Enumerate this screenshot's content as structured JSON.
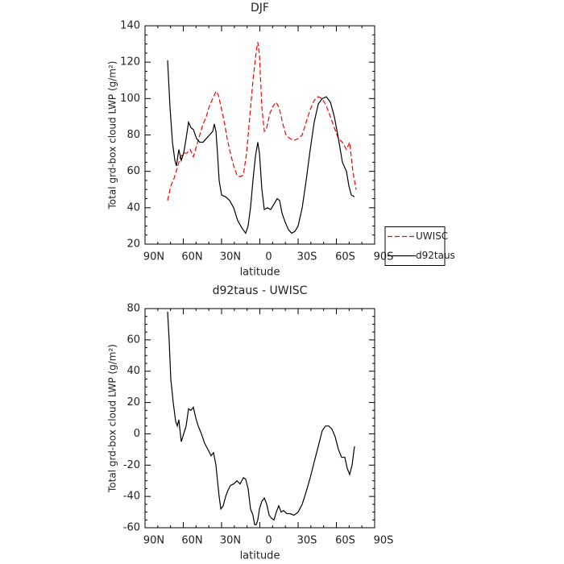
{
  "chart_data": [
    {
      "type": "line",
      "title": "DJF",
      "xlabel": "latitude",
      "ylabel": "Total grd-box cloud LWP (g/m²)",
      "xlim": [
        90,
        -90
      ],
      "xticks": [
        {
          "value": 90,
          "label": "90N"
        },
        {
          "value": 60,
          "label": "60N"
        },
        {
          "value": 30,
          "label": "30N"
        },
        0,
        {
          "value": -30,
          "label": "30S"
        },
        {
          "value": -60,
          "label": "60S"
        },
        {
          "value": -90,
          "label": "90S"
        }
      ],
      "ylim": [
        20,
        140
      ],
      "yticks": [
        20,
        40,
        60,
        80,
        100,
        120,
        140
      ],
      "legend": "right",
      "series": [
        {
          "name": "UWISC",
          "color": "#ff0000",
          "linestyle": "dashed",
          "x": [
            72.3,
            69.8,
            67.3,
            64.7,
            62.2,
            59.7,
            57.2,
            54.6,
            52.1,
            49.6,
            47.1,
            44.5,
            42.0,
            39.5,
            36.9,
            34.4,
            32.5,
            30.6,
            28.1,
            25.6,
            23.1,
            20.5,
            18.0,
            15.5,
            12.9,
            10.4,
            7.9,
            5.4,
            2.8,
            1.6,
            0.3,
            -1.6,
            -3.5,
            -5.4,
            -7.9,
            -10.4,
            -12.9,
            -15.5,
            -18.0,
            -20.5,
            -23.7,
            -26.8,
            -30.0,
            -33.2,
            -36.3,
            -39.5,
            -42.6,
            -45.8,
            -48.9,
            -52.1,
            -55.3,
            -58.4,
            -61.6,
            -64.7,
            -67.9,
            -70.4,
            -72.9,
            -75.5
          ],
          "values": [
            44,
            52,
            56,
            62,
            68,
            70,
            70,
            72,
            68,
            74,
            80,
            86,
            90,
            96,
            100,
            104,
            102,
            96,
            88,
            78,
            70,
            63,
            58,
            57,
            58,
            70,
            90,
            110,
            126,
            131,
            124,
            95,
            82,
            84,
            92,
            96,
            98,
            94,
            86,
            80,
            78,
            77,
            78,
            80,
            87,
            94,
            99,
            101,
            100,
            96,
            90,
            84,
            78,
            76,
            72,
            76,
            60,
            50
          ]
        },
        {
          "name": "d92taus",
          "color": "#000000",
          "linestyle": "solid",
          "x": [
            72.3,
            70.4,
            68.5,
            66.6,
            65.4,
            63.5,
            61.6,
            59.7,
            57.8,
            55.9,
            54.0,
            52.1,
            49.6,
            47.1,
            44.5,
            42.0,
            39.5,
            36.9,
            35.7,
            34.4,
            33.2,
            31.9,
            30.0,
            26.8,
            23.7,
            20.5,
            17.4,
            14.2,
            11.1,
            9.2,
            7.3,
            5.4,
            3.5,
            1.6,
            0.3,
            -1.6,
            -3.5,
            -6.0,
            -8.5,
            -11.1,
            -13.6,
            -15.5,
            -17.4,
            -19.9,
            -22.4,
            -24.9,
            -27.5,
            -30.0,
            -33.2,
            -36.3,
            -39.5,
            -42.6,
            -45.8,
            -48.9,
            -52.1,
            -55.3,
            -58.4,
            -61.6,
            -64.7,
            -67.9,
            -69.8,
            -71.7,
            -74.2
          ],
          "values": [
            121,
            95,
            76,
            66,
            63,
            72,
            66,
            70,
            78,
            87,
            84,
            83,
            78,
            76,
            76,
            78,
            80,
            82,
            86,
            82,
            70,
            55,
            47,
            46,
            44,
            40,
            33,
            29,
            26,
            30,
            40,
            55,
            68,
            76,
            70,
            50,
            39,
            40,
            39,
            42,
            45,
            44,
            37,
            32,
            28,
            26,
            27,
            30,
            40,
            55,
            72,
            87,
            97,
            100,
            101,
            98,
            90,
            78,
            65,
            60,
            52,
            47,
            46
          ]
        }
      ]
    },
    {
      "type": "line",
      "title": "d92taus - UWISC",
      "xlabel": "latitude",
      "ylabel": "Total grd-box cloud LWP (g/m²)",
      "xlim": [
        90,
        -90
      ],
      "xticks": [
        {
          "value": 90,
          "label": "90N"
        },
        {
          "value": 60,
          "label": "60N"
        },
        {
          "value": 30,
          "label": "30N"
        },
        0,
        {
          "value": -30,
          "label": "30S"
        },
        {
          "value": -60,
          "label": "60S"
        },
        {
          "value": -90,
          "label": "90S"
        }
      ],
      "ylim": [
        -60,
        80
      ],
      "yticks": [
        -60,
        -40,
        -20,
        0,
        20,
        40,
        60,
        80
      ],
      "series": [
        {
          "color": "#000000",
          "linestyle": "solid",
          "x": [
            72.3,
            71.1,
            69.8,
            67.9,
            66.0,
            64.7,
            63.5,
            61.6,
            59.7,
            57.8,
            55.9,
            54.0,
            52.1,
            50.2,
            48.3,
            45.8,
            43.3,
            40.7,
            38.2,
            36.3,
            34.4,
            33.2,
            31.9,
            30.6,
            28.7,
            26.8,
            24.9,
            23.1,
            20.5,
            18.0,
            15.5,
            12.9,
            11.1,
            9.2,
            7.3,
            5.4,
            4.1,
            2.8,
            1.6,
            0.3,
            -1.6,
            -3.5,
            -5.4,
            -7.3,
            -9.2,
            -11.1,
            -12.9,
            -14.8,
            -16.7,
            -18.6,
            -21.2,
            -23.7,
            -26.8,
            -30.0,
            -33.2,
            -36.3,
            -39.5,
            -42.6,
            -45.8,
            -48.9,
            -51.5,
            -54.0,
            -56.5,
            -59.1,
            -61.6,
            -64.1,
            -66.6,
            -68.5,
            -70.4,
            -72.3,
            -74.2
          ],
          "values": [
            78,
            60,
            35,
            20,
            8,
            5,
            9,
            -5,
            0,
            5,
            16,
            15,
            17,
            10,
            5,
            0,
            -6,
            -10,
            -14,
            -12,
            -20,
            -30,
            -40,
            -48,
            -46,
            -40,
            -36,
            -33,
            -32,
            -30,
            -32,
            -28,
            -29,
            -35,
            -48,
            -52,
            -58,
            -58,
            -55,
            -48,
            -43,
            -41,
            -45,
            -52,
            -54,
            -55,
            -50,
            -46,
            -50,
            -49,
            -51,
            -51,
            -52,
            -50,
            -45,
            -37,
            -28,
            -18,
            -8,
            2,
            5,
            5,
            3,
            -2,
            -10,
            -15,
            -15,
            -22,
            -26,
            -20,
            -8
          ]
        }
      ]
    }
  ]
}
